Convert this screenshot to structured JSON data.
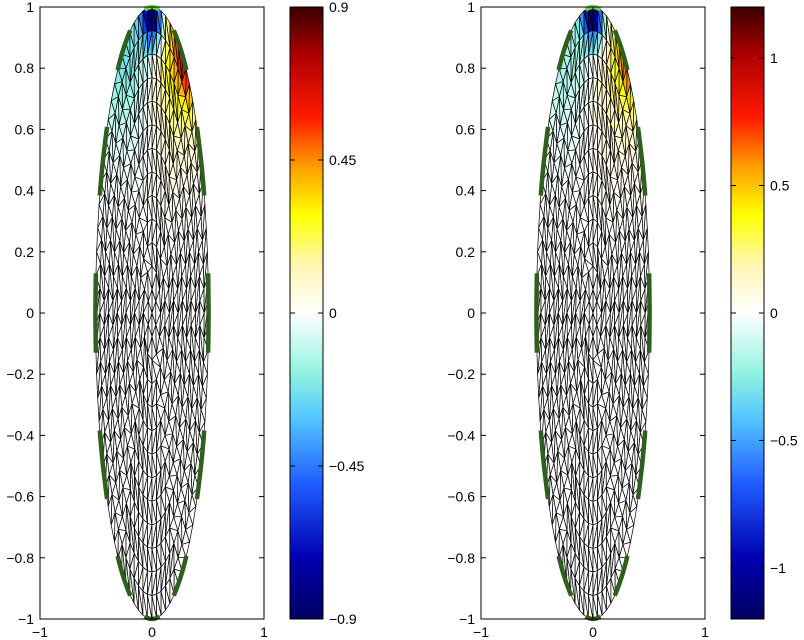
{
  "colors": {
    "mesh_line": "#000000",
    "electrode": "#2f5e1f",
    "electrode_top": "#6fd54a"
  },
  "colormap_stops": [
    [
      "#000060",
      0.0
    ],
    [
      "#0000b0",
      0.1
    ],
    [
      "#1f5cff",
      0.22
    ],
    [
      "#55c8ff",
      0.33
    ],
    [
      "#8ff2e0",
      0.4
    ],
    [
      "#ffffff",
      0.5
    ],
    [
      "#fff6b0",
      0.58
    ],
    [
      "#ffff00",
      0.66
    ],
    [
      "#ff9c00",
      0.74
    ],
    [
      "#ff1a00",
      0.82
    ],
    [
      "#b00000",
      0.92
    ],
    [
      "#3a0000",
      1.0
    ]
  ],
  "chart_data": [
    {
      "type": "heatmap",
      "subtype": "finite-element mesh on an ellipse",
      "title": "",
      "xlabel": "",
      "ylabel": "",
      "xlim": [
        -1,
        1
      ],
      "ylim": [
        -1,
        1
      ],
      "xticks": [
        "−1",
        "0",
        "1"
      ],
      "yticks": [
        "1",
        "0.8",
        "0.6",
        "0.4",
        "0.2",
        "0",
        "−0.2",
        "−0.4",
        "−0.6",
        "−0.8",
        "−1"
      ],
      "colorbar": {
        "limits": [
          -0.9,
          0.9
        ],
        "ticks": [
          {
            "value": 0.9,
            "label": "0.9"
          },
          {
            "value": 0.45,
            "label": "0.45"
          },
          {
            "value": 0,
            "label": "0"
          },
          {
            "value": -0.45,
            "label": "−0.45"
          },
          {
            "value": -0.9,
            "label": "−0.9"
          }
        ]
      },
      "electrode_angles_deg": [
        90,
        60,
        30,
        0,
        -30,
        -60,
        -90,
        -120,
        -150,
        180,
        150,
        120
      ],
      "features": [
        {
          "x": 0.0,
          "y": 0.97,
          "value": -0.9,
          "sigma": 0.07
        },
        {
          "x": 0.4,
          "y": 0.89,
          "value": 0.9,
          "sigma": 0.11
        },
        {
          "x": 0.25,
          "y": 0.84,
          "value": 0.3,
          "sigma": 0.2
        },
        {
          "x": -0.25,
          "y": 0.86,
          "value": -0.25,
          "sigma": 0.18
        }
      ]
    },
    {
      "type": "heatmap",
      "subtype": "finite-element mesh on an ellipse",
      "title": "",
      "xlabel": "",
      "ylabel": "",
      "xlim": [
        -1,
        1
      ],
      "ylim": [
        -1,
        1
      ],
      "xticks": [
        "−1",
        "0",
        "1"
      ],
      "yticks": [
        "1",
        "0.8",
        "0.6",
        "0.4",
        "0.2",
        "0",
        "−0.2",
        "−0.4",
        "−0.6",
        "−0.8",
        "−1"
      ],
      "colorbar": {
        "limits": [
          -1.2,
          1.2
        ],
        "ticks": [
          {
            "value": 1,
            "label": "1"
          },
          {
            "value": 0.5,
            "label": "0.5"
          },
          {
            "value": 0,
            "label": "0"
          },
          {
            "value": -0.5,
            "label": "−0.5"
          },
          {
            "value": -1,
            "label": "−1"
          }
        ]
      },
      "electrode_angles_deg": [
        90,
        60,
        30,
        0,
        -30,
        -60,
        -90,
        -120,
        -150,
        180,
        150,
        120
      ],
      "features": [
        {
          "x": 0.0,
          "y": 0.98,
          "value": -1.2,
          "sigma": 0.07
        },
        {
          "x": 0.42,
          "y": 0.88,
          "value": 1.2,
          "sigma": 0.11
        },
        {
          "x": 0.25,
          "y": 0.82,
          "value": 0.25,
          "sigma": 0.2
        },
        {
          "x": -0.25,
          "y": 0.85,
          "value": -0.2,
          "sigma": 0.18
        }
      ]
    }
  ]
}
